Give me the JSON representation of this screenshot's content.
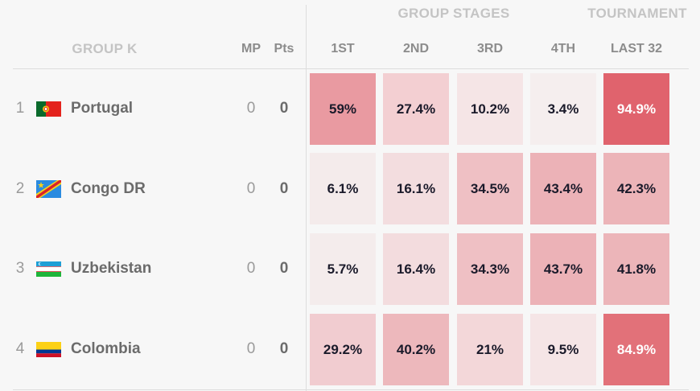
{
  "sections": {
    "group_stages": "GROUP STAGES",
    "tournament": "TOURNAMENT"
  },
  "header": {
    "group": "GROUP K",
    "mp": "MP",
    "pts": "Pts",
    "cols": [
      "1ST",
      "2ND",
      "3RD",
      "4TH",
      "LAST 32"
    ]
  },
  "rows": [
    {
      "rank": "1",
      "team": "Portugal",
      "flag": "portugal-flag-icon",
      "mp": "0",
      "pts": "0",
      "cells": [
        {
          "text": "59%",
          "bg": "#e99aa1",
          "fg": "#1a1a2a"
        },
        {
          "text": "27.4%",
          "bg": "#f3cfd2",
          "fg": "#1a1a2a"
        },
        {
          "text": "10.2%",
          "bg": "#f5e5e6",
          "fg": "#1a1a2a"
        },
        {
          "text": "3.4%",
          "bg": "#f5eeee",
          "fg": "#1a1a2a"
        },
        {
          "text": "94.9%",
          "bg": "#e0636d",
          "fg": "#ffffff"
        }
      ]
    },
    {
      "rank": "2",
      "team": "Congo DR",
      "flag": "congo-dr-flag-icon",
      "mp": "0",
      "pts": "0",
      "cells": [
        {
          "text": "6.1%",
          "bg": "#f4ebeb",
          "fg": "#1a1a2a"
        },
        {
          "text": "16.1%",
          "bg": "#f3dddf",
          "fg": "#1a1a2a"
        },
        {
          "text": "34.5%",
          "bg": "#efc0c4",
          "fg": "#1a1a2a"
        },
        {
          "text": "43.4%",
          "bg": "#ecb2b7",
          "fg": "#1a1a2a"
        },
        {
          "text": "42.3%",
          "bg": "#ecb4b8",
          "fg": "#1a1a2a"
        }
      ]
    },
    {
      "rank": "3",
      "team": "Uzbekistan",
      "flag": "uzbekistan-flag-icon",
      "mp": "0",
      "pts": "0",
      "cells": [
        {
          "text": "5.7%",
          "bg": "#f4ecec",
          "fg": "#1a1a2a"
        },
        {
          "text": "16.4%",
          "bg": "#f3dcde",
          "fg": "#1a1a2a"
        },
        {
          "text": "34.3%",
          "bg": "#efc0c4",
          "fg": "#1a1a2a"
        },
        {
          "text": "43.7%",
          "bg": "#ecb2b7",
          "fg": "#1a1a2a"
        },
        {
          "text": "41.8%",
          "bg": "#ecb5b9",
          "fg": "#1a1a2a"
        }
      ]
    },
    {
      "rank": "4",
      "team": "Colombia",
      "flag": "colombia-flag-icon",
      "mp": "0",
      "pts": "0",
      "cells": [
        {
          "text": "29.2%",
          "bg": "#f1ccd0",
          "fg": "#1a1a2a"
        },
        {
          "text": "40.2%",
          "bg": "#edb8bc",
          "fg": "#1a1a2a"
        },
        {
          "text": "21%",
          "bg": "#f3d7d9",
          "fg": "#1a1a2a"
        },
        {
          "text": "9.5%",
          "bg": "#f5e5e6",
          "fg": "#1a1a2a"
        },
        {
          "text": "84.9%",
          "bg": "#e27179",
          "fg": "#ffffff"
        }
      ]
    }
  ]
}
